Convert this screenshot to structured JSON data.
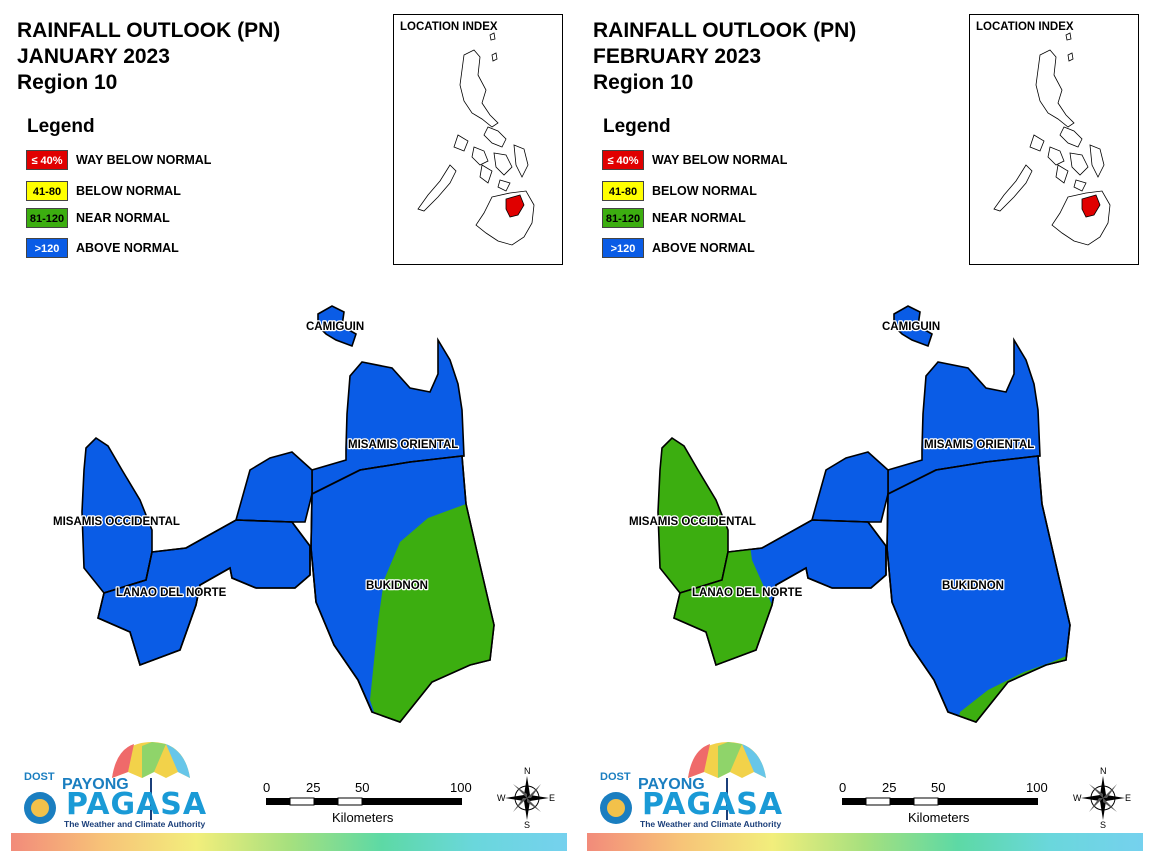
{
  "panels": [
    {
      "id": "jan",
      "title_line1": "RAINFALL OUTLOOK (PN)",
      "title_line2": "JANUARY 2023",
      "title_line3": "Region 10",
      "provinces": {
        "camiguin": {
          "label": "CAMIGUIN",
          "category": "above"
        },
        "misamis_oriental": {
          "label": "MISAMIS ORIENTAL",
          "category": "above"
        },
        "misamis_occidental": {
          "label": "MISAMIS OCCIDENTAL",
          "category": "above"
        },
        "lanao_del_norte": {
          "label": "LANAO DEL NORTE",
          "category": "above"
        },
        "bukidnon": {
          "label": "BUKIDNON",
          "category": "above",
          "secondary_category": "near",
          "secondary_area": "east"
        }
      }
    },
    {
      "id": "feb",
      "title_line1": "RAINFALL OUTLOOK (PN)",
      "title_line2": "FEBRUARY 2023",
      "title_line3": "Region 10",
      "provinces": {
        "camiguin": {
          "label": "CAMIGUIN",
          "category": "above"
        },
        "misamis_oriental": {
          "label": "MISAMIS ORIENTAL",
          "category": "above"
        },
        "misamis_occidental": {
          "label": "MISAMIS OCCIDENTAL",
          "category": "near"
        },
        "lanao_del_norte": {
          "label": "LANAO DEL NORTE",
          "category": "above",
          "secondary_category": "near",
          "secondary_area": "west"
        },
        "bukidnon": {
          "label": "BUKIDNON",
          "category": "above",
          "secondary_category": "near",
          "secondary_area": "south"
        }
      }
    }
  ],
  "legend": {
    "title": "Legend",
    "items": [
      {
        "key": "way_below",
        "range": "≤ 40%",
        "label": "WAY BELOW NORMAL",
        "color": "#e00000",
        "text_color": "#ffffff"
      },
      {
        "key": "below",
        "range": "41-80",
        "label": "BELOW NORMAL",
        "color": "#ffff00",
        "text_color": "#000000"
      },
      {
        "key": "near",
        "range": "81-120",
        "label": "NEAR NORMAL",
        "color": "#3cae10",
        "text_color": "#000000"
      },
      {
        "key": "above",
        "range": ">120",
        "label": "ABOVE NORMAL",
        "color": "#0a5ce6",
        "text_color": "#ffffff"
      }
    ]
  },
  "location_index": {
    "title": "LOCATION INDEX",
    "highlight_color": "#e00000"
  },
  "scale": {
    "ticks": [
      "0",
      "25",
      "50",
      "100"
    ],
    "unit": "Kilometers"
  },
  "compass": {
    "n": "N",
    "s": "S",
    "e": "E",
    "w": "W"
  },
  "logo": {
    "dost": "DOST",
    "payong": "PAYONG",
    "pagasa": "PAGASA",
    "tagline": "The Weather and Climate Authority"
  }
}
